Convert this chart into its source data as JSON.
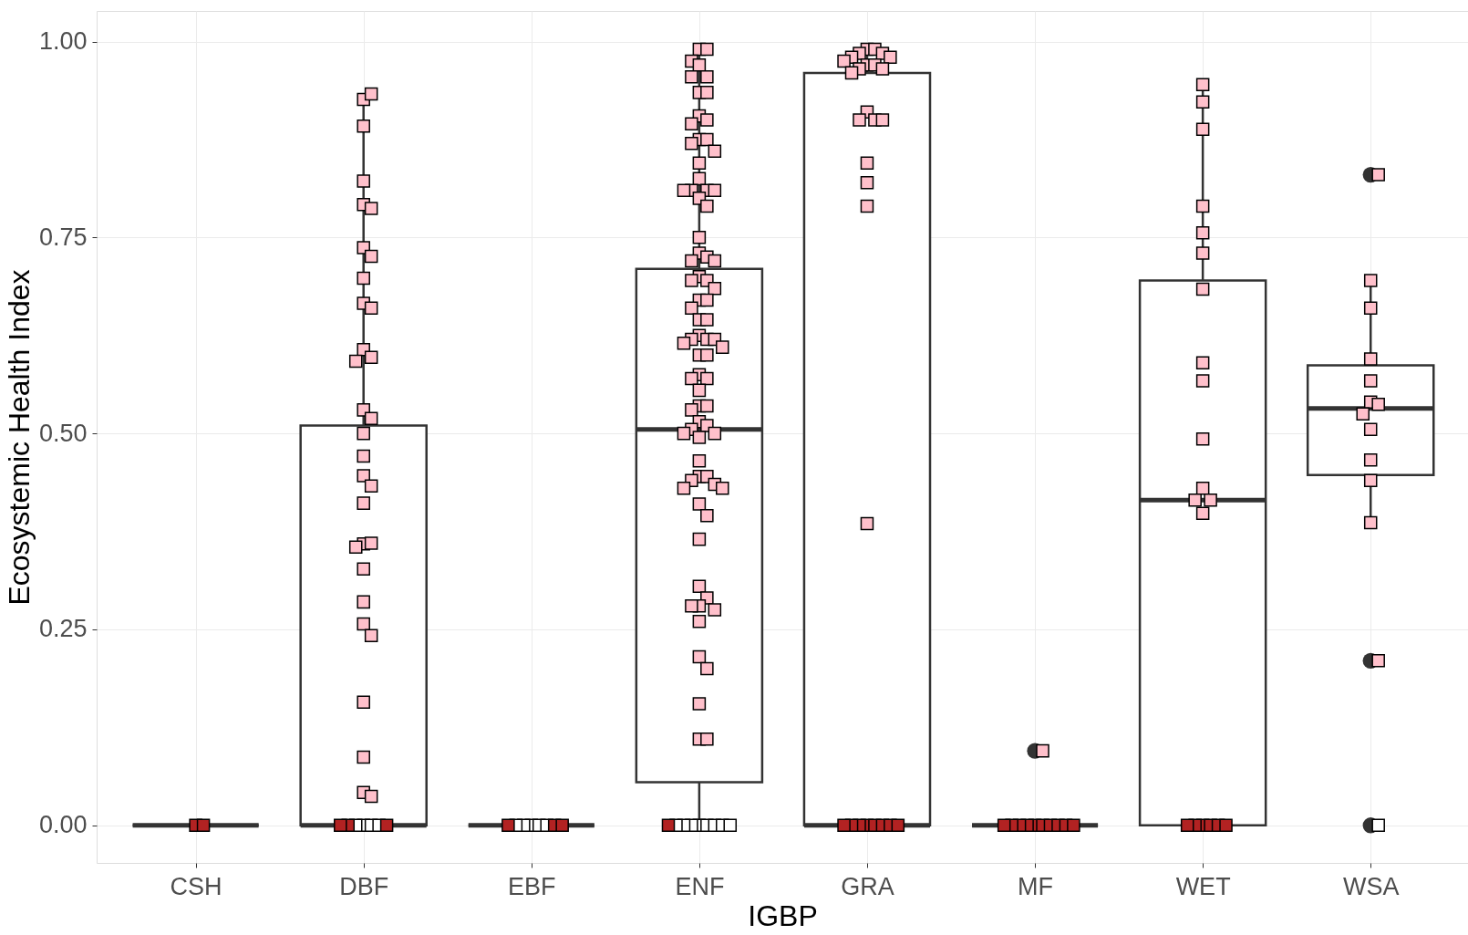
{
  "chart_data": {
    "type": "box",
    "xlabel": "IGBP",
    "ylabel": "Ecosystemic Health Index",
    "categories": [
      "CSH",
      "DBF",
      "EBF",
      "ENF",
      "GRA",
      "MF",
      "WET",
      "WSA"
    ],
    "boxes": [
      {
        "low": 0,
        "q1": 0,
        "median": 0,
        "q3": 0,
        "high": 0
      },
      {
        "low": 0,
        "q1": 0,
        "median": 0,
        "q3": 0.51,
        "high": 0.93
      },
      {
        "low": 0,
        "q1": 0,
        "median": 0,
        "q3": 0,
        "high": 0
      },
      {
        "low": 0,
        "q1": 0.055,
        "median": 0.505,
        "q3": 0.71,
        "high": 0.99
      },
      {
        "low": 0,
        "q1": 0,
        "median": 0,
        "q3": 0.96,
        "high": 0.99
      },
      {
        "low": 0,
        "q1": 0,
        "median": 0,
        "q3": 0,
        "high": 0,
        "outliers": [
          0.095
        ]
      },
      {
        "low": 0,
        "q1": 0,
        "median": 0.415,
        "q3": 0.695,
        "high": 0.945
      },
      {
        "low": 0.385,
        "q1": 0.447,
        "median": 0.532,
        "q3": 0.587,
        "high": 0.695,
        "outliers": [
          0.83,
          0.21,
          0
        ]
      }
    ],
    "color": "#333333",
    "series": [
      {
        "type": "scatter",
        "color": "#ffc0cb",
        "x": [
          "DBF",
          "DBF",
          "DBF",
          "DBF",
          "DBF",
          "DBF",
          "DBF",
          "DBF",
          "DBF",
          "DBF",
          "DBF",
          "DBF",
          "DBF",
          "DBF",
          "DBF",
          "DBF",
          "DBF",
          "DBF",
          "DBF",
          "DBF",
          "DBF",
          "DBF",
          "DBF",
          "DBF",
          "DBF",
          "DBF",
          "DBF",
          "DBF",
          "DBF",
          "DBF",
          "DBF",
          "DBF",
          "ENF",
          "ENF",
          "ENF",
          "ENF",
          "ENF",
          "ENF",
          "ENF",
          "ENF",
          "ENF",
          "ENF",
          "ENF",
          "ENF",
          "ENF",
          "ENF",
          "ENF",
          "ENF",
          "ENF",
          "ENF",
          "ENF",
          "ENF",
          "ENF",
          "ENF",
          "ENF",
          "ENF",
          "ENF",
          "ENF",
          "ENF",
          "ENF",
          "ENF",
          "ENF",
          "ENF",
          "ENF",
          "ENF",
          "ENF",
          "ENF",
          "ENF",
          "ENF",
          "ENF",
          "ENF",
          "ENF",
          "ENF",
          "ENF",
          "ENF",
          "ENF",
          "ENF",
          "ENF",
          "ENF",
          "ENF",
          "ENF",
          "ENF",
          "ENF",
          "ENF",
          "ENF",
          "ENF",
          "ENF",
          "ENF",
          "ENF",
          "ENF",
          "ENF",
          "ENF",
          "ENF",
          "ENF",
          "ENF",
          "ENF",
          "ENF",
          "ENF",
          "ENF",
          "ENF",
          "ENF",
          "ENF",
          "ENF",
          "ENF",
          "ENF",
          "ENF",
          "ENF",
          "ENF",
          "ENF",
          "ENF",
          "ENF",
          "GRA",
          "GRA",
          "GRA",
          "GRA",
          "GRA",
          "GRA",
          "GRA",
          "GRA",
          "GRA",
          "GRA",
          "GRA",
          "GRA",
          "GRA",
          "GRA",
          "GRA",
          "GRA",
          "GRA",
          "GRA",
          "GRA",
          "GRA",
          "MF",
          "WET",
          "WET",
          "WET",
          "WET",
          "WET",
          "WET",
          "WET",
          "WET",
          "WET",
          "WET",
          "WET",
          "WET",
          "WET",
          "WET",
          "WSA",
          "WSA",
          "WSA",
          "WSA",
          "WSA",
          "WSA",
          "WSA",
          "WSA",
          "WSA",
          "WSA",
          "WSA",
          "WSA",
          "WSA"
        ],
        "values": [
          0.926,
          0.933,
          0.892,
          0.822,
          0.792,
          0.787,
          0.737,
          0.726,
          0.698,
          0.666,
          0.66,
          0.607,
          0.597,
          0.592,
          0.53,
          0.519,
          0.5,
          0.471,
          0.446,
          0.433,
          0.411,
          0.359,
          0.36,
          0.355,
          0.327,
          0.285,
          0.257,
          0.242,
          0.157,
          0.087,
          0.042,
          0.037,
          0.99,
          0.99,
          0.975,
          0.97,
          0.955,
          0.955,
          0.935,
          0.935,
          0.905,
          0.9,
          0.895,
          0.875,
          0.875,
          0.87,
          0.86,
          0.845,
          0.825,
          0.81,
          0.81,
          0.81,
          0.81,
          0.8,
          0.79,
          0.75,
          0.73,
          0.725,
          0.72,
          0.72,
          0.7,
          0.695,
          0.695,
          0.685,
          0.67,
          0.67,
          0.66,
          0.645,
          0.645,
          0.625,
          0.62,
          0.62,
          0.62,
          0.615,
          0.61,
          0.6,
          0.6,
          0.575,
          0.57,
          0.57,
          0.555,
          0.535,
          0.535,
          0.53,
          0.515,
          0.51,
          0.505,
          0.5,
          0.5,
          0.495,
          0.465,
          0.445,
          0.445,
          0.44,
          0.435,
          0.43,
          0.43,
          0.41,
          0.395,
          0.365,
          0.305,
          0.29,
          0.28,
          0.28,
          0.275,
          0.26,
          0.215,
          0.2,
          0.155,
          0.11,
          0.11,
          0.99,
          0.99,
          0.985,
          0.985,
          0.98,
          0.98,
          0.975,
          0.97,
          0.97,
          0.965,
          0.965,
          0.96,
          0.91,
          0.9,
          0.9,
          0.9,
          0.845,
          0.82,
          0.79,
          0.385,
          0.095,
          0.923,
          0.945,
          0.888,
          0.79,
          0.73,
          0.756,
          0.684,
          0.59,
          0.567,
          0.493,
          0.43,
          0.415,
          0.415,
          0.398,
          0.83,
          0.695,
          0.66,
          0.595,
          0.567,
          0.54,
          0.537,
          0.525,
          0.505,
          0.466,
          0.44,
          0.386,
          0.21
        ]
      },
      {
        "type": "scatter",
        "color": "#ffffff",
        "x": [
          "DBF",
          "DBF",
          "DBF",
          "DBF",
          "EBF",
          "EBF",
          "EBF",
          "EBF",
          "EBF",
          "ENF",
          "ENF",
          "ENF",
          "ENF",
          "ENF",
          "ENF",
          "ENF",
          "ENF",
          "WSA"
        ],
        "values": [
          0,
          0,
          0,
          0,
          0,
          0,
          0,
          0,
          0,
          0,
          0,
          0,
          0,
          0,
          0,
          0,
          0,
          0
        ]
      },
      {
        "type": "scatter",
        "color": "#b22222",
        "x": [
          "CSH",
          "CSH",
          "DBF",
          "DBF",
          "DBF",
          "EBF",
          "EBF",
          "EBF",
          "ENF",
          "GRA",
          "GRA",
          "GRA",
          "GRA",
          "GRA",
          "GRA",
          "GRA",
          "GRA",
          "MF",
          "MF",
          "MF",
          "MF",
          "MF",
          "MF",
          "MF",
          "MF",
          "MF",
          "MF",
          "WET",
          "WET",
          "WET",
          "WET",
          "WET",
          "WET"
        ],
        "values": [
          0,
          0,
          0,
          0,
          0,
          0,
          0,
          0,
          0,
          0,
          0,
          0,
          0,
          0,
          0,
          0,
          0,
          0,
          0,
          0,
          0,
          0,
          0,
          0,
          0,
          0,
          0,
          0,
          0,
          0,
          0,
          0,
          0
        ]
      }
    ],
    "marker": "square",
    "ylim": [
      -0.048,
      1.039
    ],
    "yticks": [
      {
        "value": 0,
        "label": "0.00"
      },
      {
        "value": 0.25,
        "label": "0.25"
      },
      {
        "value": 0.5,
        "label": "0.50"
      },
      {
        "value": 0.75,
        "label": "0.75"
      },
      {
        "value": 1,
        "label": "1.00"
      }
    ],
    "grid": true
  }
}
